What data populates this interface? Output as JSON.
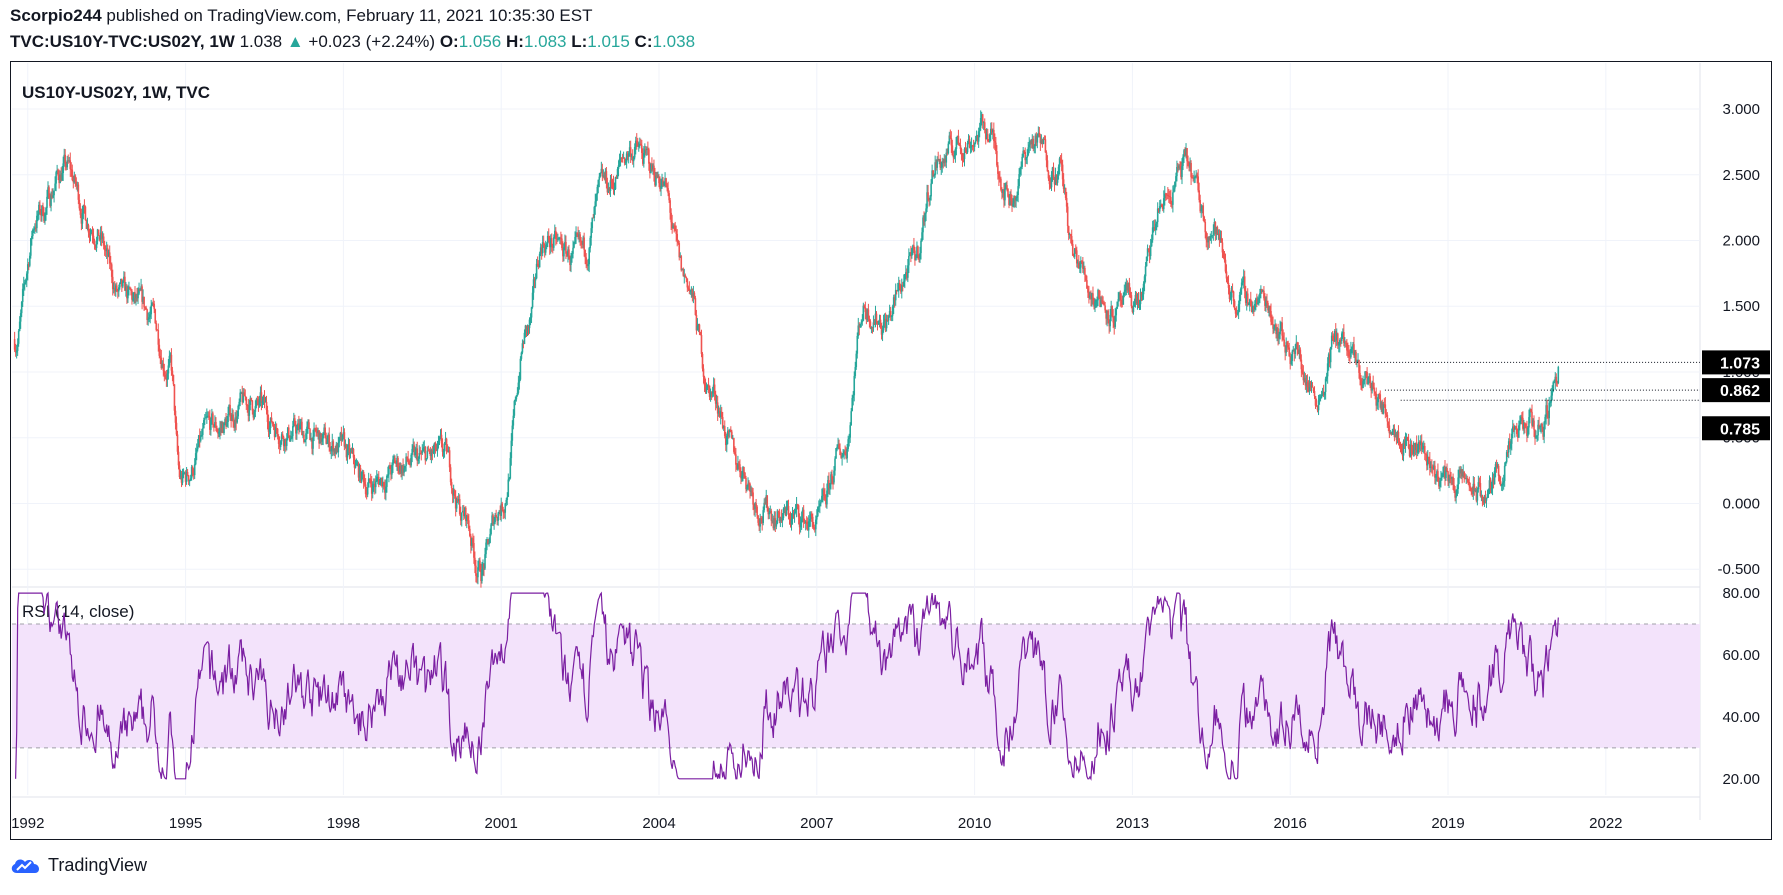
{
  "header": {
    "publisher_line": "Scorpio244 published on TradingView.com, February 11, 2021 10:35:30 EST",
    "publisher": "Scorpio244",
    "publisher_rest": " published on TradingView.com, February 11, 2021 10:35:30 EST",
    "symbol": "TVC:US10Y-TVC:US02Y, 1W",
    "last": "1.038",
    "change_arrow": "▲",
    "change": "+0.023 (+2.24%)",
    "o_label": "O:",
    "o_val": "1.056",
    "h_label": "H:",
    "h_val": "1.083",
    "l_label": "L:",
    "l_val": "1.015",
    "c_label": "C:",
    "c_val": "1.038"
  },
  "colors": {
    "up": "#26a69a",
    "down": "#ef5350",
    "rsi": "#7b1fa2",
    "rsi_band": "#f3e3fb",
    "accent_dark": "#000000"
  },
  "chart_data": [
    {
      "type": "candlestick",
      "title": "US10Y-US02Y, 1W, TVC",
      "x_ticks": [
        "1992",
        "1995",
        "1998",
        "2001",
        "2004",
        "2007",
        "2010",
        "2013",
        "2016",
        "2019",
        "2022"
      ],
      "y_ticks": [
        "3.000",
        "2.500",
        "2.000",
        "1.500",
        "1.000",
        "0.500",
        "0.000",
        "-0.500"
      ],
      "ylim": [
        -0.62,
        3.35
      ],
      "xlim": [
        1991.7,
        2023.6
      ],
      "price_labels": [
        "1.073",
        "0.862",
        "0.785"
      ],
      "price_label_values": [
        1.073,
        0.862,
        0.785
      ],
      "series_name": "US10Y-US02Y",
      "approx_close_keypoints": [
        [
          1991.75,
          1.25
        ],
        [
          1992.2,
          2.2
        ],
        [
          1992.7,
          2.55
        ],
        [
          1993.2,
          2.15
        ],
        [
          1993.8,
          1.55
        ],
        [
          1994.3,
          1.45
        ],
        [
          1994.7,
          1.05
        ],
        [
          1994.9,
          0.15
        ],
        [
          1995.5,
          0.55
        ],
        [
          1996.2,
          0.75
        ],
        [
          1997.0,
          0.55
        ],
        [
          1997.8,
          0.45
        ],
        [
          1998.5,
          0.15
        ],
        [
          1999.2,
          0.3
        ],
        [
          1999.9,
          0.35
        ],
        [
          2000.3,
          -0.1
        ],
        [
          2000.6,
          -0.5
        ],
        [
          2001.0,
          0.0
        ],
        [
          2001.5,
          1.3
        ],
        [
          2001.8,
          2.0
        ],
        [
          2002.5,
          1.85
        ],
        [
          2003.0,
          2.4
        ],
        [
          2003.5,
          2.7
        ],
        [
          2004.0,
          2.5
        ],
        [
          2004.5,
          1.7
        ],
        [
          2005.0,
          0.85
        ],
        [
          2005.5,
          0.3
        ],
        [
          2006.0,
          -0.05
        ],
        [
          2006.5,
          -0.1
        ],
        [
          2007.0,
          -0.15
        ],
        [
          2007.5,
          0.4
        ],
        [
          2007.9,
          1.5
        ],
        [
          2008.3,
          1.4
        ],
        [
          2008.8,
          1.8
        ],
        [
          2009.3,
          2.6
        ],
        [
          2009.8,
          2.75
        ],
        [
          2010.2,
          2.85
        ],
        [
          2010.7,
          2.35
        ],
        [
          2011.1,
          2.75
        ],
        [
          2011.6,
          2.55
        ],
        [
          2011.9,
          1.85
        ],
        [
          2012.3,
          1.6
        ],
        [
          2012.7,
          1.45
        ],
        [
          2013.1,
          1.55
        ],
        [
          2013.6,
          2.3
        ],
        [
          2014.0,
          2.55
        ],
        [
          2014.5,
          2.1
        ],
        [
          2015.0,
          1.55
        ],
        [
          2015.5,
          1.55
        ],
        [
          2016.0,
          1.2
        ],
        [
          2016.5,
          0.85
        ],
        [
          2016.9,
          1.25
        ],
        [
          2017.4,
          0.95
        ],
        [
          2017.9,
          0.65
        ],
        [
          2018.4,
          0.45
        ],
        [
          2018.9,
          0.2
        ],
        [
          2019.3,
          0.15
        ],
        [
          2019.7,
          0.05
        ],
        [
          2020.0,
          0.25
        ],
        [
          2020.4,
          0.55
        ],
        [
          2020.8,
          0.6
        ],
        [
          2021.1,
          1.038
        ]
      ]
    },
    {
      "type": "line",
      "title": "RSI (14, close)",
      "y_ticks": [
        "80.00",
        "60.00",
        "40.00",
        "20.00"
      ],
      "ylim": [
        18,
        81
      ],
      "band": [
        30,
        70
      ],
      "series_name": "RSI (14, close)"
    }
  ],
  "branding": {
    "name": "TradingView"
  }
}
